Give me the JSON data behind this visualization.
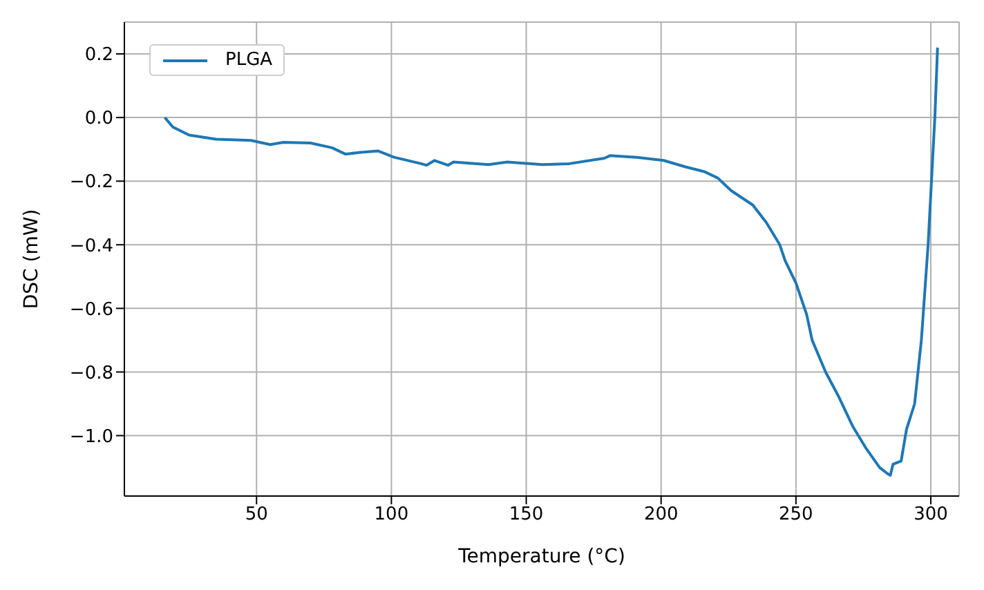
{
  "chart_data": {
    "type": "line",
    "xlabel": "Temperature (°C)",
    "ylabel": "DSC (mW)",
    "xlim": [
      1,
      310.5
    ],
    "ylim": [
      -1.19,
      0.3
    ],
    "xticks": [
      50,
      100,
      150,
      200,
      250,
      300
    ],
    "yticks": [
      {
        "value": 0.2,
        "label": "0.2"
      },
      {
        "value": 0,
        "label": "0.0"
      },
      {
        "value": -0.2,
        "label": "−0.2"
      },
      {
        "value": -0.4,
        "label": "−0.4"
      },
      {
        "value": -0.6,
        "label": "−0.6"
      },
      {
        "value": -0.8,
        "label": "−0.8"
      },
      {
        "value": -1,
        "label": "−1.0"
      }
    ],
    "grid": true,
    "legend": "top left",
    "marker": "none",
    "line_style": "solid",
    "x": [
      16,
      19,
      25,
      35,
      48,
      55,
      60,
      70,
      78,
      83,
      88,
      95,
      101,
      111,
      113,
      116,
      121,
      123,
      136,
      143,
      156,
      166,
      179,
      181,
      191,
      201,
      209,
      216,
      221,
      226,
      234,
      239,
      244,
      246,
      250,
      254,
      256,
      261,
      266,
      271,
      276,
      281,
      284,
      285,
      286,
      289,
      291,
      294,
      296.5,
      299,
      301.5,
      302.5
    ],
    "series": [
      {
        "name": "PLGA",
        "color": "#1f77b4",
        "values": [
          0,
          -0.03,
          -0.055,
          -0.068,
          -0.072,
          -0.085,
          -0.078,
          -0.08,
          -0.095,
          -0.115,
          -0.11,
          -0.105,
          -0.125,
          -0.145,
          -0.15,
          -0.135,
          -0.15,
          -0.14,
          -0.148,
          -0.14,
          -0.148,
          -0.145,
          -0.128,
          -0.12,
          -0.125,
          -0.135,
          -0.155,
          -0.17,
          -0.19,
          -0.23,
          -0.275,
          -0.33,
          -0.4,
          -0.45,
          -0.52,
          -0.62,
          -0.7,
          -0.8,
          -0.88,
          -0.97,
          -1.04,
          -1.1,
          -1.12,
          -1.125,
          -1.09,
          -1.08,
          -0.98,
          -0.9,
          -0.7,
          -0.4,
          0,
          0.22
        ]
      }
    ]
  }
}
